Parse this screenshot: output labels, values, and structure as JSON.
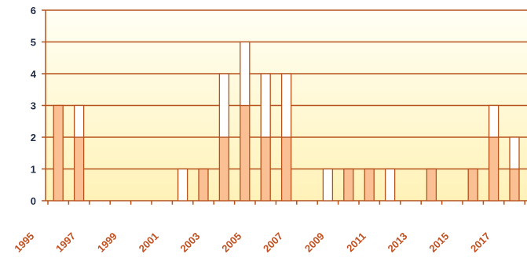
{
  "chart_data": {
    "type": "stacked-bar",
    "categories": [
      "1995",
      null,
      "1997",
      null,
      "1999",
      null,
      "2001",
      null,
      "2003",
      null,
      "2005",
      null,
      "2007",
      null,
      "2009",
      null,
      "2011",
      null,
      "2013",
      null,
      "2015",
      null,
      "2017"
    ],
    "series": [
      {
        "color": "#fbbf94",
        "values": [
          3,
          2,
          0,
          0,
          0,
          0,
          0,
          1,
          2,
          3,
          2,
          2,
          0,
          0,
          1,
          1,
          0,
          0,
          1,
          0,
          1,
          2,
          1
        ]
      },
      {
        "color": "#ffffff",
        "values": [
          0,
          1,
          0,
          0,
          0,
          0,
          1,
          0,
          2,
          2,
          2,
          2,
          0,
          1,
          0,
          0,
          1,
          0,
          0,
          0,
          0,
          1,
          1
        ]
      }
    ],
    "ylim": [
      0,
      6
    ],
    "yticks": [
      0,
      1,
      2,
      3,
      4,
      5,
      6
    ],
    "grid": true
  }
}
